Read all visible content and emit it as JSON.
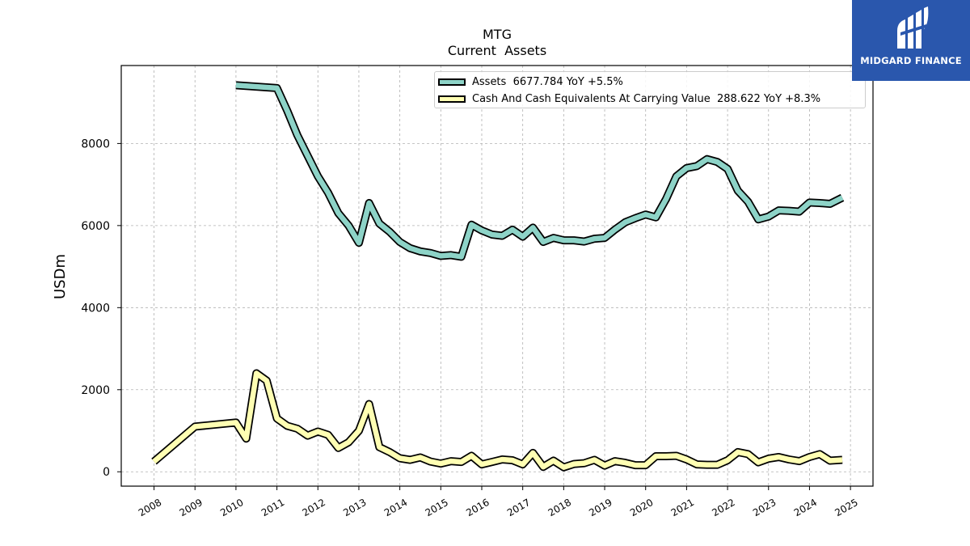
{
  "chart_data": {
    "type": "line",
    "title": "MTG",
    "subtitle": "Current  Assets",
    "ylabel": "USDm",
    "xlabel": "",
    "ylim": [
      -350,
      9900
    ],
    "xlim": [
      2007.2,
      2025.55
    ],
    "yticks": [
      0,
      2000,
      4000,
      6000,
      8000
    ],
    "ytick_labels": [
      "0",
      "2000",
      "4000",
      "6000",
      "8000"
    ],
    "xticks": [
      2008,
      2009,
      2010,
      2011,
      2012,
      2013,
      2014,
      2015,
      2016,
      2017,
      2018,
      2019,
      2020,
      2021,
      2022,
      2023,
      2024,
      2025
    ],
    "xtick_labels": [
      "2008",
      "2009",
      "2010",
      "2011",
      "2012",
      "2013",
      "2014",
      "2015",
      "2016",
      "2017",
      "2018",
      "2019",
      "2020",
      "2021",
      "2022",
      "2023",
      "2024",
      "2025"
    ],
    "grid": true,
    "legend_position": "top-right",
    "series": [
      {
        "name": "Assets",
        "legend_label": "Assets  6677.784 YoY +5.5%",
        "color": "#8dd3c7",
        "x": [
          2010.0,
          2011.0,
          2011.25,
          2011.5,
          2011.75,
          2012.0,
          2012.25,
          2012.5,
          2012.75,
          2013.0,
          2013.25,
          2013.5,
          2013.75,
          2014.0,
          2014.25,
          2014.5,
          2014.75,
          2015.0,
          2015.25,
          2015.5,
          2015.75,
          2016.0,
          2016.25,
          2016.5,
          2016.75,
          2017.0,
          2017.25,
          2017.5,
          2017.75,
          2018.0,
          2018.25,
          2018.5,
          2018.75,
          2019.0,
          2019.25,
          2019.5,
          2019.75,
          2020.0,
          2020.25,
          2020.5,
          2020.75,
          2021.0,
          2021.25,
          2021.5,
          2021.75,
          2022.0,
          2022.25,
          2022.5,
          2022.75,
          2023.0,
          2023.25,
          2023.5,
          2023.75,
          2024.0,
          2024.25,
          2024.5,
          2024.8
        ],
        "y": [
          9420,
          9350,
          8800,
          8200,
          7700,
          7200,
          6800,
          6300,
          6000,
          5580,
          6550,
          6050,
          5850,
          5600,
          5450,
          5370,
          5330,
          5260,
          5280,
          5240,
          6020,
          5880,
          5780,
          5750,
          5900,
          5730,
          5950,
          5600,
          5700,
          5640,
          5640,
          5610,
          5680,
          5700,
          5900,
          6080,
          6180,
          6270,
          6200,
          6650,
          7200,
          7400,
          7450,
          7620,
          7550,
          7380,
          6850,
          6580,
          6150,
          6220,
          6370,
          6360,
          6340,
          6560,
          6550,
          6530,
          6680
        ]
      },
      {
        "name": "Cash And Cash Equivalents At Carrying Value",
        "legend_label": "Cash And Cash Equivalents At Carrying Value  288.622 YoY +8.3%",
        "color": "#ffffb3",
        "x": [
          2008.0,
          2009.0,
          2010.0,
          2010.25,
          2010.5,
          2010.75,
          2011.0,
          2011.25,
          2011.5,
          2011.75,
          2012.0,
          2012.25,
          2012.5,
          2012.75,
          2013.0,
          2013.25,
          2013.5,
          2013.75,
          2014.0,
          2014.25,
          2014.5,
          2014.75,
          2015.0,
          2015.25,
          2015.5,
          2015.75,
          2016.0,
          2016.25,
          2016.5,
          2016.75,
          2017.0,
          2017.25,
          2017.5,
          2017.75,
          2018.0,
          2018.25,
          2018.5,
          2018.75,
          2019.0,
          2019.25,
          2019.5,
          2019.75,
          2020.0,
          2020.25,
          2020.5,
          2020.75,
          2021.0,
          2021.25,
          2021.5,
          2021.75,
          2022.0,
          2022.25,
          2022.5,
          2022.75,
          2023.0,
          2023.25,
          2023.5,
          2023.75,
          2024.0,
          2024.25,
          2024.5,
          2024.8
        ],
        "y": [
          250,
          1100,
          1200,
          810,
          2400,
          2220,
          1300,
          1120,
          1050,
          880,
          980,
          900,
          580,
          720,
          1000,
          1650,
          600,
          480,
          330,
          290,
          350,
          250,
          200,
          260,
          240,
          390,
          180,
          240,
          300,
          280,
          180,
          460,
          120,
          270,
          110,
          190,
          210,
          290,
          150,
          260,
          220,
          160,
          160,
          380,
          380,
          390,
          300,
          180,
          170,
          170,
          280,
          480,
          430,
          230,
          320,
          360,
          300,
          260,
          360,
          430,
          270,
          290
        ]
      }
    ]
  },
  "logo": {
    "text": "MIDGARD FINANCE"
  }
}
